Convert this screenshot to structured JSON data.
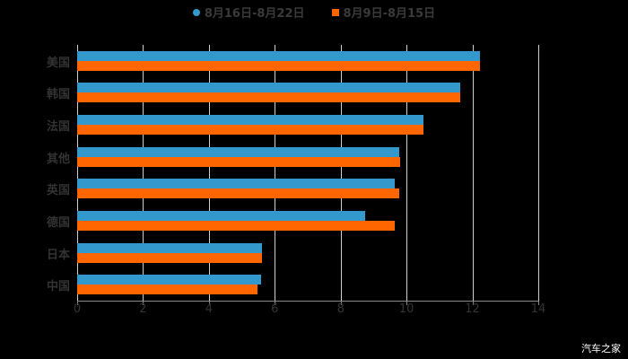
{
  "chart_data": {
    "type": "bar",
    "orientation": "horizontal",
    "title": "",
    "categories": [
      "美国",
      "韩国",
      "法国",
      "其他",
      "英国",
      "德国",
      "日本",
      "中国"
    ],
    "series": [
      {
        "name": "8月16日-8月22日",
        "color": "#3399cc",
        "values": [
          12.23,
          11.63,
          10.52,
          9.78,
          9.65,
          8.75,
          5.61,
          5.59
        ]
      },
      {
        "name": "8月9日-8月15日",
        "color": "#ff6600",
        "values": [
          12.23,
          11.63,
          10.52,
          9.81,
          9.78,
          9.65,
          5.61,
          5.48
        ]
      }
    ],
    "xlabel": "",
    "ylabel": "",
    "xlim": [
      0,
      14
    ],
    "xticks": [
      "0",
      "2",
      "4",
      "6",
      "8",
      "10",
      "12",
      "14"
    ],
    "grid": true,
    "legend_position": "top"
  },
  "legend": {
    "item1": "8月16日-8月22日",
    "item2": "8月9日-8月15日"
  },
  "watermark": "汽车之家"
}
